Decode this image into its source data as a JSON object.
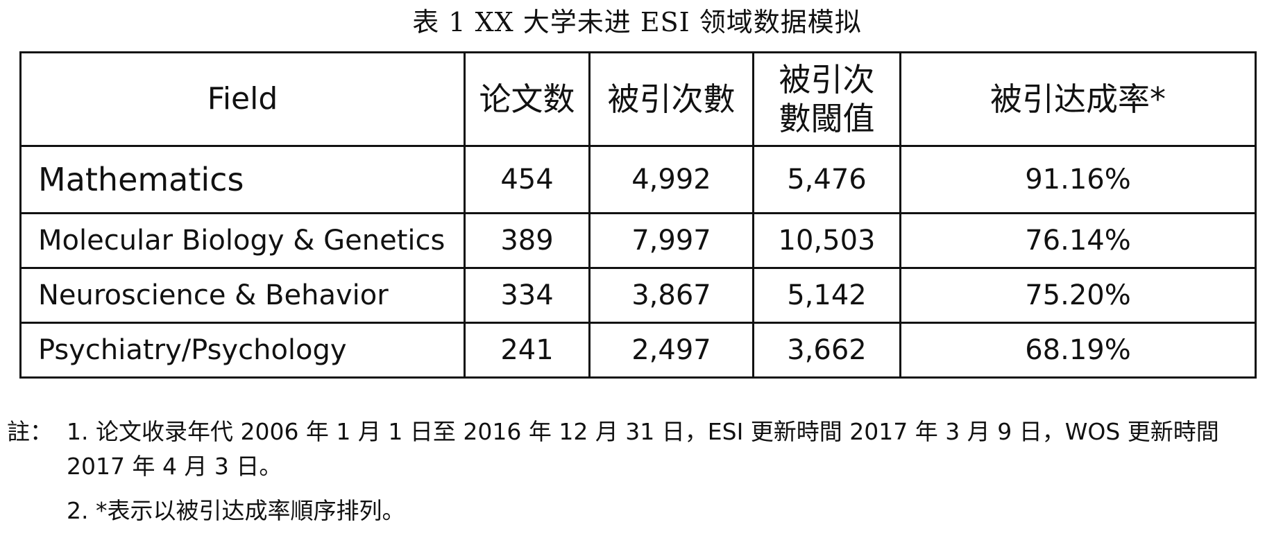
{
  "caption": "表 1 XX 大学未进 ESI 领域数据模拟",
  "table": {
    "headers": [
      "Field",
      "论文数",
      "被引次數",
      "被引次數閾值",
      "被引达成率*"
    ],
    "rows": [
      [
        "Mathematics",
        "454",
        "4,992",
        "5,476",
        "91.16%"
      ],
      [
        "Molecular Biology & Genetics",
        "389",
        "7,997",
        "10,503",
        "76.14%"
      ],
      [
        "Neuroscience & Behavior",
        "334",
        "3,867",
        "5,142",
        "75.20%"
      ],
      [
        "Psychiatry/Psychology",
        "241",
        "2,497",
        "3,662",
        "68.19%"
      ]
    ]
  },
  "notes": {
    "prefix": "註：",
    "note1": "1. 论文收录年代 2006 年 1 月 1 日至 2016 年 12 月 31 日，ESI 更新時間 2017 年 3 月 9 日，WOS 更新時間 2017 年 4 月 3 日。",
    "note2": "2. *表示以被引达成率順序排列。"
  }
}
